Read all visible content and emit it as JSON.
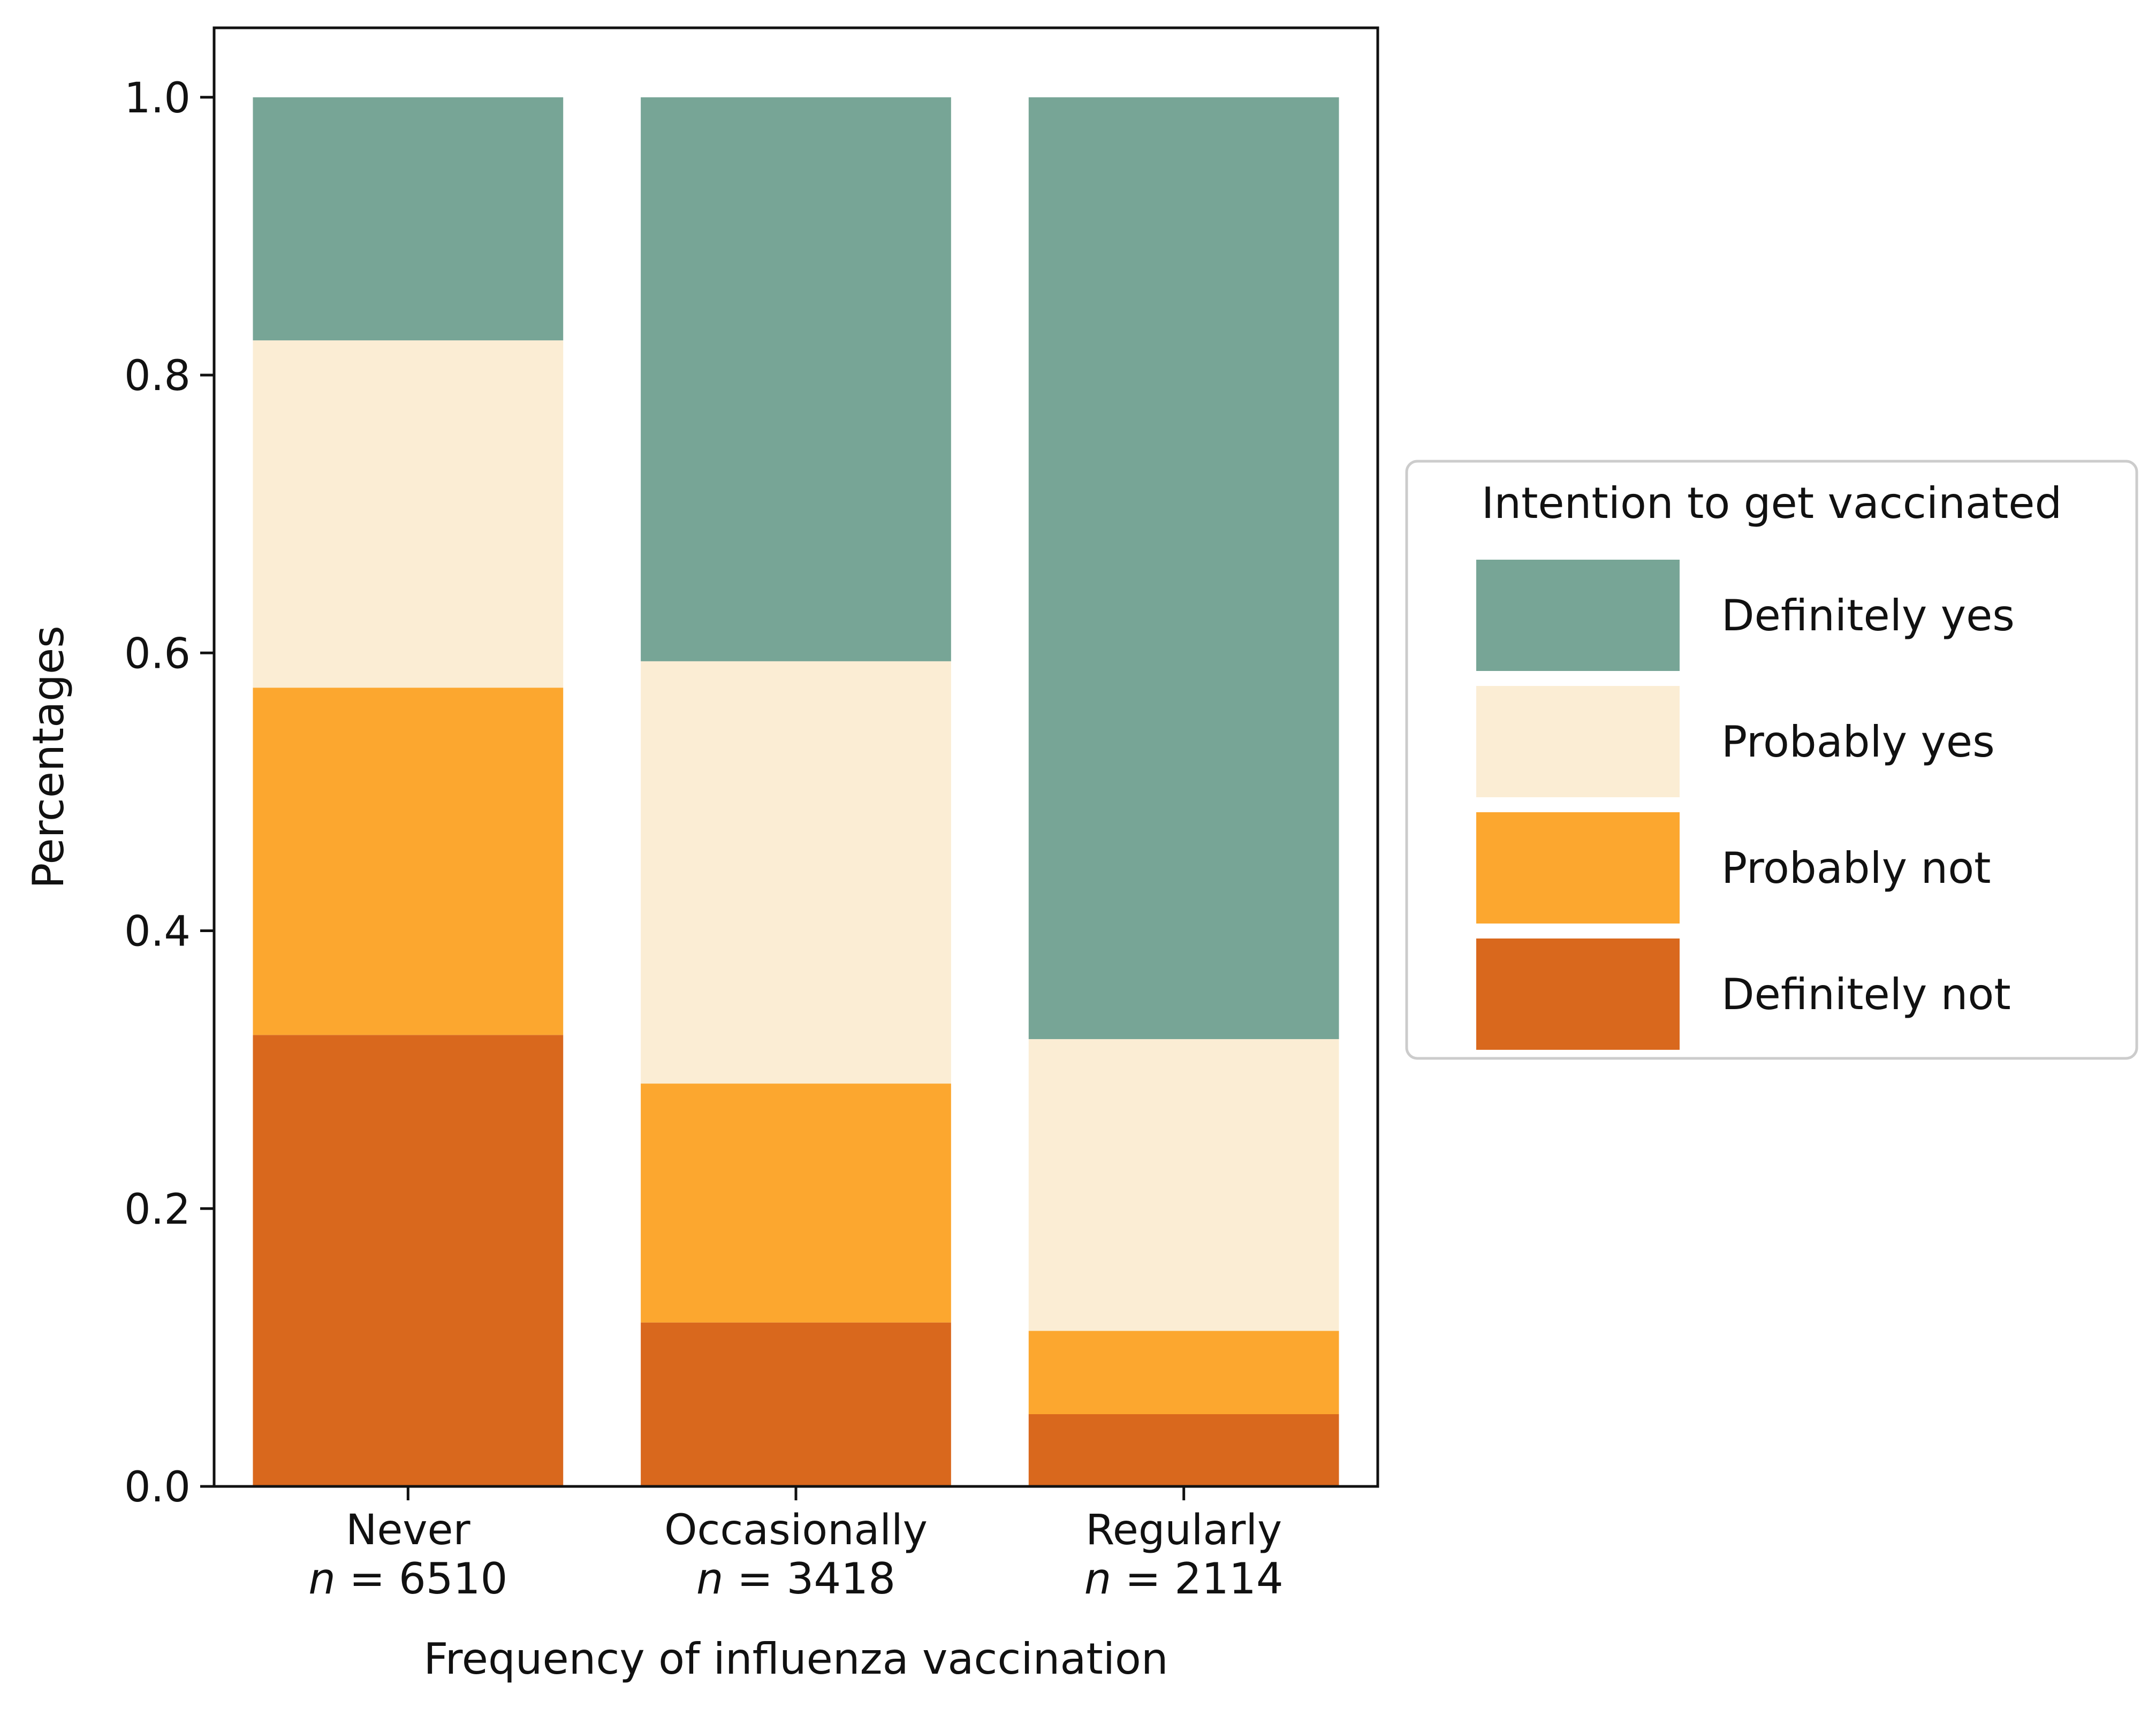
{
  "chart_data": {
    "type": "bar",
    "stacked": true,
    "categories": [
      "Never",
      "Occasionally",
      "Regularly"
    ],
    "category_sublabels": [
      {
        "n_symbol": "n",
        "equals": "=",
        "count": "6510"
      },
      {
        "n_symbol": "n",
        "equals": "=",
        "count": "3418"
      },
      {
        "n_symbol": "n",
        "equals": "=",
        "count": "2114"
      }
    ],
    "series": [
      {
        "name": "Definitely not",
        "color": "#d9681d",
        "values": [
          0.325,
          0.118,
          0.052
        ]
      },
      {
        "name": "Probably not",
        "color": "#fca72f",
        "values": [
          0.25,
          0.172,
          0.06
        ]
      },
      {
        "name": "Probably yes",
        "color": "#fbedd4",
        "values": [
          0.25,
          0.304,
          0.21
        ]
      },
      {
        "name": "Definitely yes",
        "color": "#77a596",
        "values": [
          0.175,
          0.406,
          0.678
        ]
      }
    ],
    "legend_title": "Intention to get vaccinated",
    "legend_order": [
      "Definitely yes",
      "Probably yes",
      "Probably not",
      "Definitely not"
    ],
    "legend_position": "right",
    "xlabel": "Frequency of influenza vaccination",
    "ylabel": "Percentages",
    "ylim": [
      0,
      1.05
    ],
    "yticks": [
      0.0,
      0.2,
      0.4,
      0.6,
      0.8,
      1.0
    ],
    "ytick_labels": [
      "0.0",
      "0.2",
      "0.4",
      "0.6",
      "0.8",
      "1.0"
    ],
    "grid": false
  }
}
